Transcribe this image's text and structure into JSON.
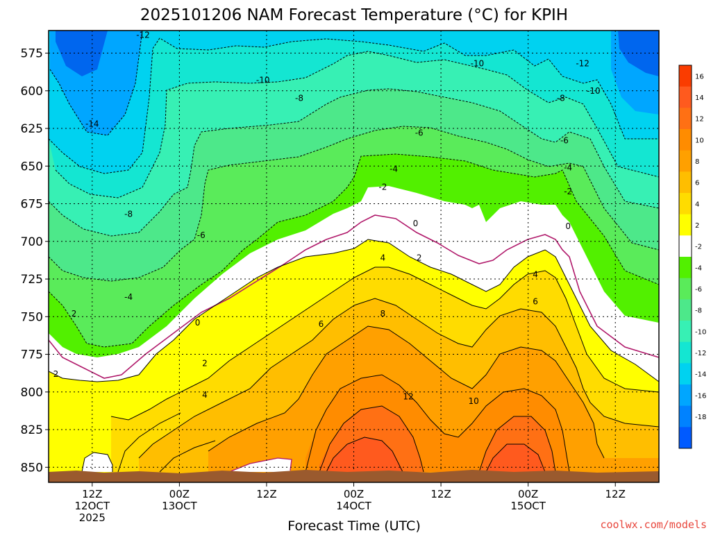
{
  "chart_data": {
    "type": "heatmap",
    "title": "2025101206 NAM Forecast Temperature (°C) for KPIH",
    "xlabel": "Forecast Time (UTC)",
    "ylabel": "",
    "y_scale": "pressure (hPa), increasing downward",
    "y_ticks": [
      575,
      600,
      625,
      650,
      675,
      700,
      725,
      750,
      775,
      800,
      825,
      850
    ],
    "ylim": [
      560,
      860
    ],
    "x_ticks": [
      {
        "hour": 6,
        "lines": [
          "12Z",
          "12OCT",
          "2025"
        ]
      },
      {
        "hour": 18,
        "lines": [
          "00Z",
          "13OCT"
        ]
      },
      {
        "hour": 30,
        "lines": [
          "12Z"
        ]
      },
      {
        "hour": 42,
        "lines": [
          "00Z",
          "14OCT"
        ]
      },
      {
        "hour": 54,
        "lines": [
          "12Z"
        ]
      },
      {
        "hour": 66,
        "lines": [
          "00Z",
          "15OCT"
        ]
      },
      {
        "hour": 78,
        "lines": [
          "12Z"
        ]
      }
    ],
    "xlim_hours": [
      0,
      84
    ],
    "grid": "dotted",
    "colorbar_levels": [
      16,
      14,
      12,
      10,
      8,
      6,
      4,
      2,
      -2,
      -4,
      -6,
      -8,
      -10,
      -12,
      -14,
      -16,
      -18
    ],
    "colorbar_colors": [
      "#fa3c00",
      "#ff5a1e",
      "#ff7014",
      "#ff8c00",
      "#ffa000",
      "#ffbe00",
      "#ffdc00",
      "#ffff00",
      "#ffffff",
      "#52f000",
      "#5aeb5a",
      "#4de88a",
      "#37f0b4",
      "#14e6d2",
      "#00d2f0",
      "#00a6ff",
      "#0082ff",
      "#005aff"
    ],
    "contour_fill_levels": [
      -16,
      -14,
      -12,
      -10,
      -8,
      -6,
      -4,
      -2,
      2,
      4,
      6,
      8,
      10,
      12,
      14,
      16
    ],
    "fill_colors": [
      "#0066ee",
      "#00a6ff",
      "#00d2f0",
      "#14e6d2",
      "#37f0b4",
      "#4de88a",
      "#5aeb5a",
      "#52f000",
      "#ffffff",
      "#ffff00",
      "#ffdc00",
      "#ffbe00",
      "#ffa000",
      "#ff8c00",
      "#ff7014",
      "#ff5a1e",
      "#fa3c00"
    ],
    "contour_labels": [
      {
        "text": "-12",
        "hour": 13.0,
        "p": 563
      },
      {
        "text": "-10",
        "hour": 29.5,
        "p": 593
      },
      {
        "text": "-8",
        "hour": 34.5,
        "p": 605
      },
      {
        "text": "-6",
        "hour": 51.0,
        "p": 628
      },
      {
        "text": "-4",
        "hour": 47.5,
        "p": 652
      },
      {
        "text": "-2",
        "hour": 46.0,
        "p": 664
      },
      {
        "text": "0",
        "hour": 50.5,
        "p": 688
      },
      {
        "text": "2",
        "hour": 51.0,
        "p": 711
      },
      {
        "text": "4",
        "hour": 46.0,
        "p": 711
      },
      {
        "text": "6",
        "hour": 37.5,
        "p": 755
      },
      {
        "text": "8",
        "hour": 46.0,
        "p": 748
      },
      {
        "text": "10",
        "hour": 58.5,
        "p": 806
      },
      {
        "text": "12",
        "hour": 49.5,
        "p": 803
      },
      {
        "text": "-14",
        "hour": 6.0,
        "p": 622
      },
      {
        "text": "-8",
        "hour": 11.0,
        "p": 682
      },
      {
        "text": "-6",
        "hour": 21.0,
        "p": 696
      },
      {
        "text": "-4",
        "hour": 11.0,
        "p": 737
      },
      {
        "text": "2",
        "hour": 3.5,
        "p": 748
      },
      {
        "text": "0",
        "hour": 20.5,
        "p": 754
      },
      {
        "text": "2",
        "hour": 21.5,
        "p": 781
      },
      {
        "text": "4",
        "hour": 21.5,
        "p": 802
      },
      {
        "text": "2",
        "hour": 1.0,
        "p": 788
      },
      {
        "text": "-10",
        "hour": 59.0,
        "p": 582
      },
      {
        "text": "-12",
        "hour": 73.5,
        "p": 582
      },
      {
        "text": "-10",
        "hour": 75.0,
        "p": 600
      },
      {
        "text": "-8",
        "hour": 70.5,
        "p": 605
      },
      {
        "text": "-6",
        "hour": 71.0,
        "p": 633
      },
      {
        "text": "-4",
        "hour": 71.5,
        "p": 651
      },
      {
        "text": "-2",
        "hour": 71.5,
        "p": 667
      },
      {
        "text": "0",
        "hour": 71.5,
        "p": 690
      },
      {
        "text": "4",
        "hour": 67.0,
        "p": 722
      },
      {
        "text": "6",
        "hour": 67.0,
        "p": 740
      }
    ],
    "ground_hpa_approx": 856
  },
  "footer": {
    "credit": "coolwx.com/models"
  }
}
